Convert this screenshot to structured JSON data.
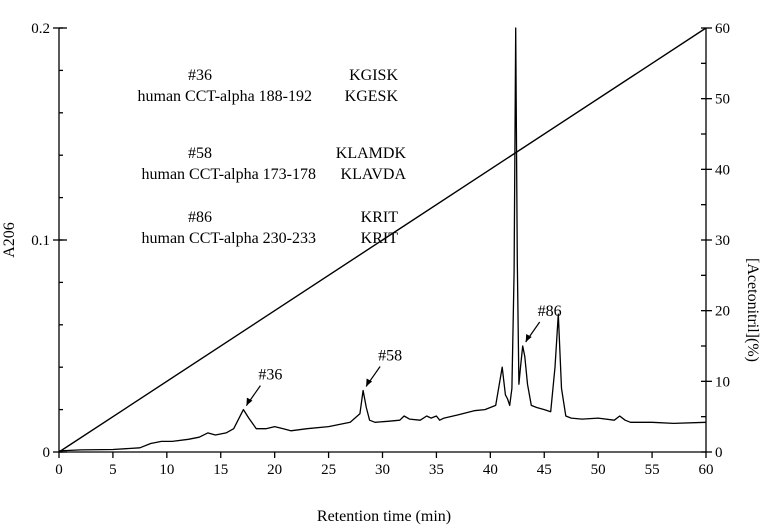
{
  "chart_data": {
    "type": "line",
    "title": "",
    "xlabel": "Retention time (min)",
    "ylabel": "A206",
    "y2label": "[Acetonitril](%)",
    "xlim": [
      0,
      60
    ],
    "ylim": [
      0,
      0.2
    ],
    "y2lim": [
      0,
      60
    ],
    "x_ticks": [
      0,
      5,
      10,
      15,
      20,
      25,
      30,
      35,
      40,
      45,
      50,
      55,
      60
    ],
    "y_ticks": [
      {
        "value": 0,
        "label": "0"
      },
      {
        "value": 0.1,
        "label": "0.1"
      },
      {
        "value": 0.2,
        "label": "0.2"
      }
    ],
    "y2_ticks": [
      0,
      10,
      20,
      30,
      40,
      50,
      60
    ],
    "series": [
      {
        "kind": "absorbance",
        "axis": "left",
        "x": [
          0,
          2,
          5,
          7.5,
          8.5,
          9.5,
          10.5,
          12,
          13,
          13.8,
          14.5,
          15.5,
          16.2,
          16.7,
          17.1,
          17.6,
          18.3,
          19.2,
          20.0,
          20.8,
          21.5,
          23,
          25,
          27,
          27.9,
          28.2,
          28.5,
          28.8,
          29.3,
          30.5,
          31.6,
          32.0,
          32.5,
          33.5,
          34.1,
          34.5,
          35.0,
          35.3,
          35.7,
          37,
          38.5,
          39.5,
          40.5,
          41.1,
          41.4,
          41.6,
          41.8,
          42.0,
          42.2,
          42.35,
          42.5,
          42.65,
          42.8,
          43.0,
          43.2,
          43.45,
          43.8,
          44.3,
          45.0,
          45.6,
          46.0,
          46.3,
          46.6,
          47.0,
          47.5,
          48.5,
          50,
          51.5,
          52,
          52.5,
          53,
          55,
          57,
          60
        ],
        "y": [
          0.0005,
          0.001,
          0.0012,
          0.002,
          0.004,
          0.005,
          0.005,
          0.006,
          0.007,
          0.009,
          0.008,
          0.009,
          0.011,
          0.016,
          0.02,
          0.016,
          0.011,
          0.011,
          0.012,
          0.011,
          0.01,
          0.011,
          0.012,
          0.014,
          0.018,
          0.029,
          0.021,
          0.015,
          0.014,
          0.0145,
          0.015,
          0.017,
          0.0155,
          0.015,
          0.017,
          0.016,
          0.017,
          0.015,
          0.016,
          0.0175,
          0.0195,
          0.02,
          0.022,
          0.04,
          0.027,
          0.025,
          0.022,
          0.03,
          0.085,
          0.2,
          0.09,
          0.032,
          0.04,
          0.05,
          0.045,
          0.032,
          0.022,
          0.021,
          0.02,
          0.019,
          0.04,
          0.065,
          0.03,
          0.017,
          0.016,
          0.0155,
          0.016,
          0.015,
          0.017,
          0.015,
          0.014,
          0.014,
          0.0135,
          0.014
        ]
      },
      {
        "kind": "gradient",
        "axis": "right",
        "x": [
          0,
          60
        ],
        "y": [
          0,
          60
        ]
      }
    ],
    "peak_labels": [
      {
        "label": "#36",
        "x": 17.1,
        "y": 0.02
      },
      {
        "label": "#58",
        "x": 28.2,
        "y": 0.029
      },
      {
        "label": "#86",
        "x": 43.0,
        "y": 0.05
      }
    ],
    "annotations": [
      {
        "id": "#36",
        "id_peptide": "KGISK",
        "ref": "human CCT-alpha 188-192",
        "ref_peptide": "KGESK"
      },
      {
        "id": "#58",
        "id_peptide": "KLAMDK",
        "ref": "human CCT-alpha 173-178",
        "ref_peptide": "KLAVDA"
      },
      {
        "id": "#86",
        "id_peptide": "KRIT",
        "ref": "human CCT-alpha 230-233",
        "ref_peptide": "KRIT"
      }
    ],
    "grid": false,
    "legend": "none"
  }
}
